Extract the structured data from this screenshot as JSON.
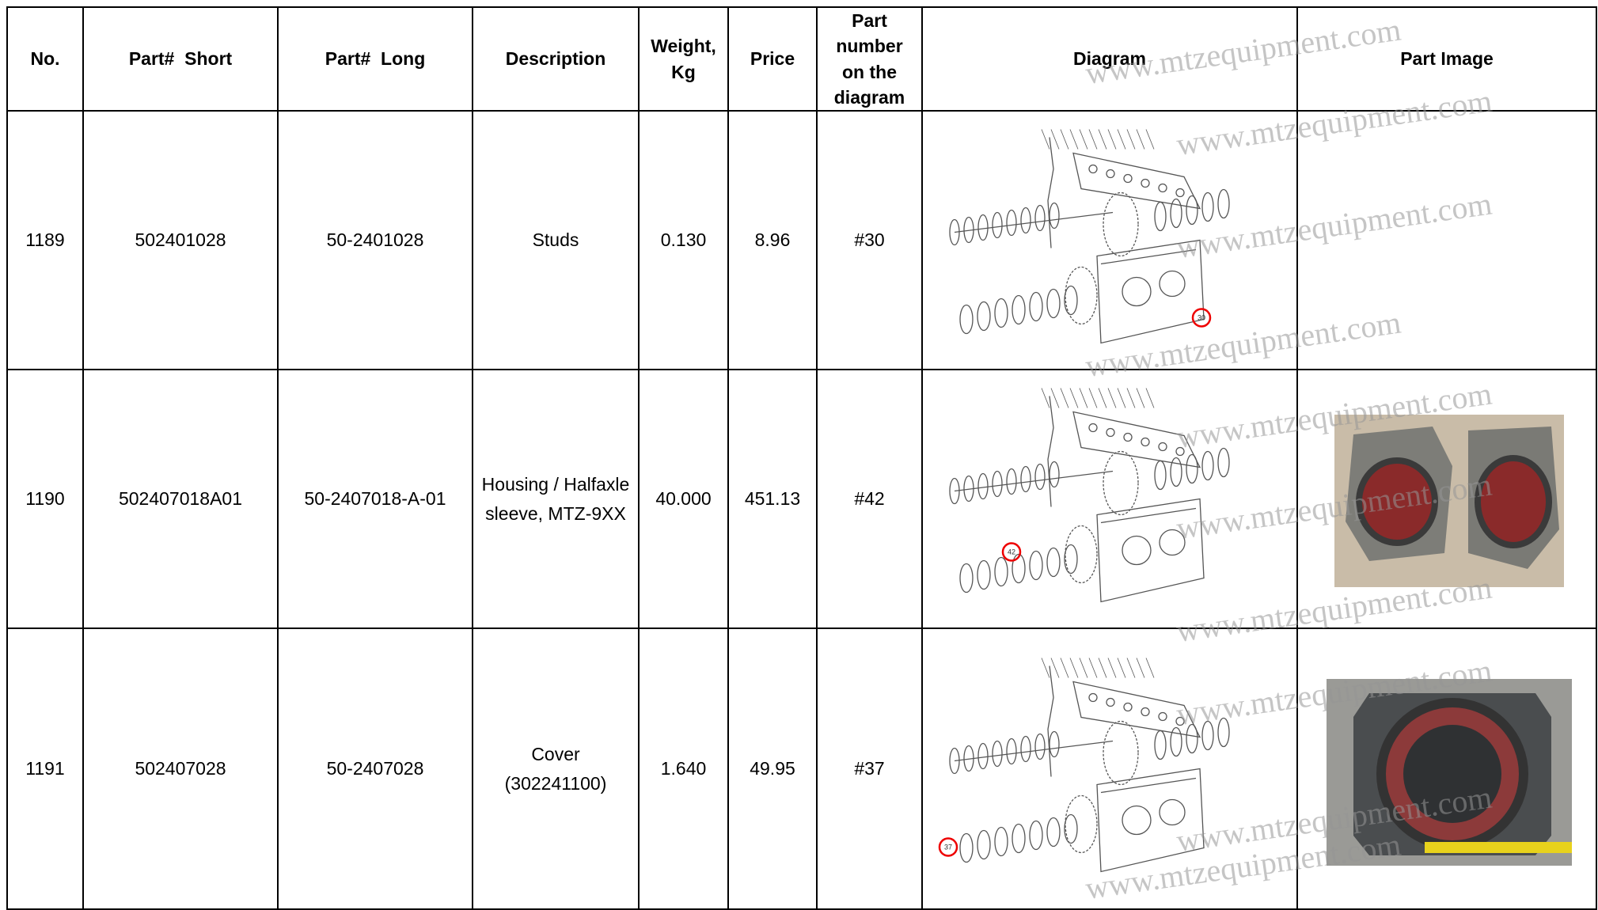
{
  "table": {
    "headers": [
      "No.",
      "Part#  Short",
      "Part#  Long",
      "Description",
      "Weight, Kg",
      "Price",
      "Part number on the diagram",
      "Diagram",
      "Part Image"
    ],
    "rows": [
      {
        "no": "1189",
        "part_short": "502401028",
        "part_long": "50-2401028",
        "description": "Studs",
        "weight": "0.130",
        "price": "8.96",
        "diagram_number": "#30",
        "diagram_callout": "30"
      },
      {
        "no": "1190",
        "part_short": "502407018A01",
        "part_long": "50-2407018-A-01",
        "description": "Housing / Halfaxle sleeve, MTZ-9XX",
        "weight": "40.000",
        "price": "451.13",
        "diagram_number": "#42",
        "diagram_callout": "42"
      },
      {
        "no": "1191",
        "part_short": "502407028",
        "part_long": "50-2407028",
        "description": "Cover (302241100)",
        "weight": "1.640",
        "price": "49.95",
        "diagram_number": "#37",
        "diagram_callout": "37"
      }
    ]
  },
  "watermark": "www.mtzequipment.com"
}
